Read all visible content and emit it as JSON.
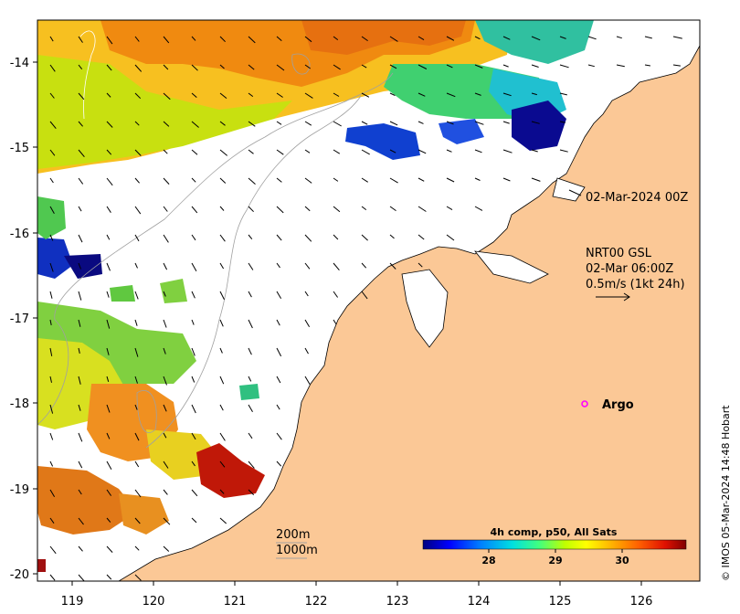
{
  "map": {
    "lat_ticks": [
      "-14",
      "-15",
      "-16",
      "-17",
      "-18",
      "-19",
      "-20"
    ],
    "lon_ticks": [
      "119",
      "120",
      "121",
      "122",
      "123",
      "124",
      "125",
      "126"
    ],
    "land_color": "#fbc896",
    "contour_color": "#a0a0a0"
  },
  "annotations": {
    "image_date": "02-Mar-2024 00Z",
    "current_source": "NRT00 GSL",
    "current_time": "02-Mar 06:00Z",
    "scale_arrow": "0.5m/s (1kt 24h)",
    "argo_label": "Argo",
    "contour_200": "200m",
    "contour_1000": "1000m"
  },
  "colorbar": {
    "title": "4h comp, p50, All Sats",
    "labels": [
      "28",
      "29",
      "30"
    ],
    "stops": [
      "#00007f",
      "#0000ff",
      "#0080ff",
      "#00e0e0",
      "#40ff80",
      "#c0ff00",
      "#ffff00",
      "#ffb000",
      "#ff6000",
      "#e01000",
      "#800000"
    ]
  },
  "credit": "© IMOS 05-Mar-2024 14:48 Hobart"
}
